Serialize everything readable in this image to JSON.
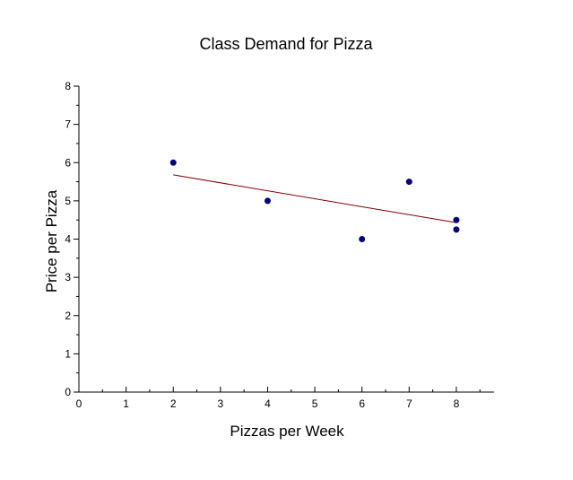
{
  "chart_data": {
    "type": "scatter",
    "title": "Class Demand for Pizza",
    "xlabel": "Pizzas per Week",
    "ylabel": "Price per Pizza",
    "xlim": [
      0,
      8.8
    ],
    "ylim": [
      0,
      8
    ],
    "x_ticks": [
      "0",
      "1",
      "2",
      "3",
      "4",
      "5",
      "6",
      "7",
      "8"
    ],
    "y_ticks": [
      "0",
      "1",
      "2",
      "3",
      "4",
      "5",
      "6",
      "7",
      "8"
    ],
    "grid": false,
    "legend": "none",
    "series": [
      {
        "points": [
          {
            "x": 2,
            "y": 6.0
          },
          {
            "x": 4,
            "y": 5.0
          },
          {
            "x": 6,
            "y": 4.0
          },
          {
            "x": 7,
            "y": 5.5
          },
          {
            "x": 8,
            "y": 4.5
          },
          {
            "x": 8,
            "y": 4.25
          }
        ],
        "color": "#000080"
      }
    ],
    "trendline": {
      "type": "linear",
      "from": {
        "x": 2,
        "y": 5.68
      },
      "to": {
        "x": 8,
        "y": 4.43
      },
      "color": "#800000"
    }
  }
}
